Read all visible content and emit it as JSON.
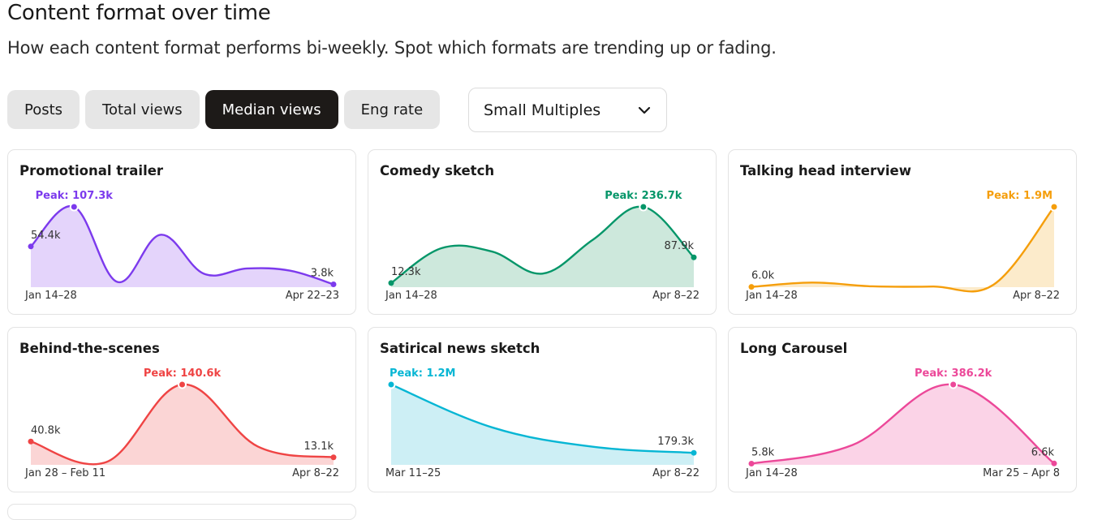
{
  "header": {
    "title": "Content format over time",
    "subtitle": "How each content format performs bi-weekly. Spot which formats are trending up or fading."
  },
  "tabs": [
    {
      "label": "Posts",
      "active": false
    },
    {
      "label": "Total views",
      "active": false
    },
    {
      "label": "Median views",
      "active": true
    },
    {
      "label": "Eng rate",
      "active": false
    }
  ],
  "view_select": {
    "value": "Small Multiples",
    "icon": "chevron-down-icon"
  },
  "chart_data": [
    {
      "type": "area",
      "title": "Promotional trailer",
      "color": "#7c3aed",
      "fill": "#e4d4fb",
      "x_start": "Jan 14–28",
      "x_end": "Apr 22–23",
      "values": [
        54.4,
        107.3,
        7,
        70,
        18,
        25,
        22,
        3.8
      ],
      "peak_index": 1,
      "labels": {
        "start": "54.4k",
        "peak": "Peak: 107.3k",
        "end": "3.8k"
      }
    },
    {
      "type": "area",
      "title": "Comedy sketch",
      "color": "#059669",
      "fill": "#cde8dc",
      "x_start": "Jan 14–28",
      "x_end": "Apr 8–22",
      "values": [
        12.3,
        115,
        105,
        40,
        140,
        236.7,
        87.9
      ],
      "peak_index": 5,
      "labels": {
        "start": "12.3k",
        "peak": "Peak: 236.7k",
        "end": "87.9k"
      }
    },
    {
      "type": "area",
      "title": "Talking head interview",
      "color": "#f59e0b",
      "fill": "#fcebcb",
      "x_start": "Jan 14–28",
      "x_end": "Apr 8–22",
      "values": [
        6.0,
        110,
        20,
        15,
        60,
        1900
      ],
      "peak_index": 5,
      "labels": {
        "start": "6.0k",
        "peak": "Peak: 1.9M",
        "end": ""
      }
    },
    {
      "type": "area",
      "title": "Behind-the-scenes",
      "color": "#ef4444",
      "fill": "#fbd5d5",
      "x_start": "Jan 28 – Feb 11",
      "x_end": "Apr 8–22",
      "values": [
        40.8,
        5,
        140.6,
        32,
        13.1
      ],
      "peak_index": 2,
      "labels": {
        "start": "40.8k",
        "peak": "Peak: 140.6k",
        "end": "13.1k"
      }
    },
    {
      "type": "area",
      "title": "Satirical news sketch",
      "color": "#06b6d4",
      "fill": "#cdeff5",
      "x_start": "Mar 11–25",
      "x_end": "Apr 8–22",
      "values": [
        1200,
        560,
        270,
        179.3
      ],
      "peak_index": 0,
      "labels": {
        "start": "",
        "peak": "Peak: 1.2M",
        "end": "179.3k"
      }
    },
    {
      "type": "area",
      "title": "Long Carousel",
      "color": "#ec4899",
      "fill": "#fbd3e7",
      "x_start": "Jan 14–28",
      "x_end": "Mar 25 – Apr 8",
      "values": [
        5.8,
        95,
        386.2,
        6.6
      ],
      "peak_index": 2,
      "labels": {
        "start": "5.8k",
        "peak": "Peak: 386.2k",
        "end": "6.6k"
      }
    }
  ]
}
